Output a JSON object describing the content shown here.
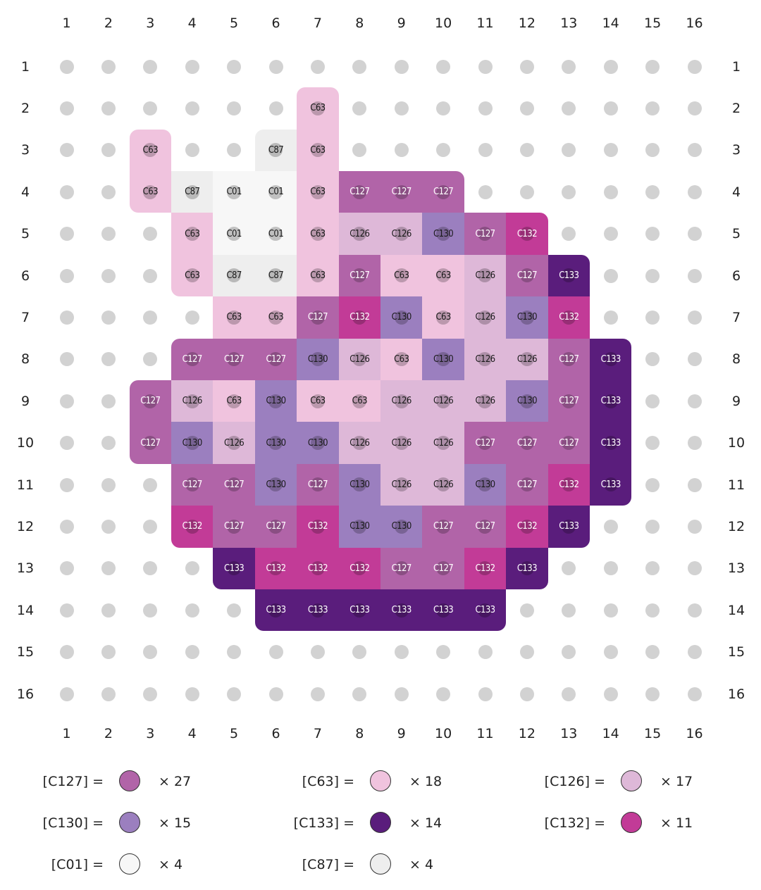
{
  "colors": {
    "C01": "#f7f7f7",
    "C87": "#eeeeee",
    "C63": "#f0c3de",
    "C126": "#deb8d8",
    "C127": "#b164a8",
    "C130": "#9b7fbf",
    "C132": "#c23b97",
    "C133": "#5a1d7c"
  },
  "columns": [
    "1",
    "2",
    "3",
    "4",
    "5",
    "6",
    "7",
    "8",
    "9",
    "10",
    "11",
    "12",
    "13",
    "14",
    "15",
    "16"
  ],
  "rows": [
    "1",
    "2",
    "3",
    "4",
    "5",
    "6",
    "7",
    "8",
    "9",
    "10",
    "11",
    "12",
    "13",
    "14",
    "15",
    "16"
  ],
  "grid": [
    [
      null,
      null,
      null,
      null,
      null,
      null,
      null,
      null,
      null,
      null,
      null,
      null,
      null,
      null,
      null,
      null
    ],
    [
      null,
      null,
      null,
      null,
      null,
      null,
      "C63",
      null,
      null,
      null,
      null,
      null,
      null,
      null,
      null,
      null
    ],
    [
      null,
      null,
      "C63",
      null,
      null,
      "C87",
      "C63",
      null,
      null,
      null,
      null,
      null,
      null,
      null,
      null,
      null
    ],
    [
      null,
      null,
      "C63",
      "C87",
      "C01",
      "C01",
      "C63",
      "C127",
      "C127",
      "C127",
      null,
      null,
      null,
      null,
      null,
      null
    ],
    [
      null,
      null,
      null,
      "C63",
      "C01",
      "C01",
      "C63",
      "C126",
      "C126",
      "C130",
      "C127",
      "C132",
      null,
      null,
      null,
      null
    ],
    [
      null,
      null,
      null,
      "C63",
      "C87",
      "C87",
      "C63",
      "C127",
      "C63",
      "C63",
      "C126",
      "C127",
      "C133",
      null,
      null,
      null
    ],
    [
      null,
      null,
      null,
      null,
      "C63",
      "C63",
      "C127",
      "C132",
      "C130",
      "C63",
      "C126",
      "C130",
      "C132",
      null,
      null,
      null
    ],
    [
      null,
      null,
      null,
      "C127",
      "C127",
      "C127",
      "C130",
      "C126",
      "C63",
      "C130",
      "C126",
      "C126",
      "C127",
      "C133",
      null,
      null
    ],
    [
      null,
      null,
      "C127",
      "C126",
      "C63",
      "C130",
      "C63",
      "C63",
      "C126",
      "C126",
      "C126",
      "C130",
      "C127",
      "C133",
      null,
      null
    ],
    [
      null,
      null,
      "C127",
      "C130",
      "C126",
      "C130",
      "C130",
      "C126",
      "C126",
      "C126",
      "C127",
      "C127",
      "C127",
      "C133",
      null,
      null
    ],
    [
      null,
      null,
      null,
      "C127",
      "C127",
      "C130",
      "C127",
      "C130",
      "C126",
      "C126",
      "C130",
      "C127",
      "C132",
      "C133",
      null,
      null
    ],
    [
      null,
      null,
      null,
      "C132",
      "C127",
      "C127",
      "C132",
      "C130",
      "C130",
      "C127",
      "C127",
      "C132",
      "C133",
      null,
      null,
      null
    ],
    [
      null,
      null,
      null,
      null,
      "C133",
      "C132",
      "C132",
      "C132",
      "C127",
      "C127",
      "C132",
      "C133",
      null,
      null,
      null,
      null
    ],
    [
      null,
      null,
      null,
      null,
      null,
      "C133",
      "C133",
      "C133",
      "C133",
      "C133",
      "C133",
      null,
      null,
      null,
      null,
      null
    ],
    [
      null,
      null,
      null,
      null,
      null,
      null,
      null,
      null,
      null,
      null,
      null,
      null,
      null,
      null,
      null,
      null
    ],
    [
      null,
      null,
      null,
      null,
      null,
      null,
      null,
      null,
      null,
      null,
      null,
      null,
      null,
      null,
      null,
      null
    ]
  ],
  "legend": [
    {
      "code": "C127",
      "label": "[C127] =",
      "count": "× 27",
      "color": "#b164a8"
    },
    {
      "code": "C63",
      "label": "[C63] =",
      "count": "× 18",
      "color": "#f0c3de"
    },
    {
      "code": "C126",
      "label": "[C126] =",
      "count": "× 17",
      "color": "#deb8d8"
    },
    {
      "code": "C130",
      "label": "[C130] =",
      "count": "× 15",
      "color": "#9b7fbf"
    },
    {
      "code": "C133",
      "label": "[C133] =",
      "count": "× 14",
      "color": "#5a1d7c"
    },
    {
      "code": "C132",
      "label": "[C132] =",
      "count": "× 11",
      "color": "#c23b97"
    },
    {
      "code": "C01",
      "label": "[C01] =",
      "count": "× 4",
      "color": "#f7f7f7"
    },
    {
      "code": "C87",
      "label": "[C87] =",
      "count": "× 4",
      "color": "#eeeeee"
    }
  ]
}
